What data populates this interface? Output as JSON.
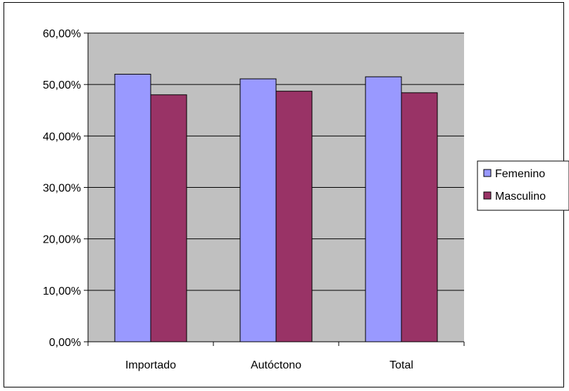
{
  "chart_data": {
    "type": "bar",
    "categories": [
      "Importado",
      "Autóctono",
      "Total"
    ],
    "series": [
      {
        "name": "Femenino",
        "values": [
          52.0,
          51.1,
          51.5
        ],
        "color": "#9999ff"
      },
      {
        "name": "Masculino",
        "values": [
          48.0,
          48.7,
          48.4
        ],
        "color": "#993366"
      }
    ],
    "ylim": [
      0,
      60
    ],
    "yticks": [
      "0,00%",
      "10,00%",
      "20,00%",
      "30,00%",
      "40,00%",
      "50,00%",
      "60,00%"
    ],
    "grid": true,
    "plot_background": "#c0c0c0",
    "legend_position": "right"
  }
}
